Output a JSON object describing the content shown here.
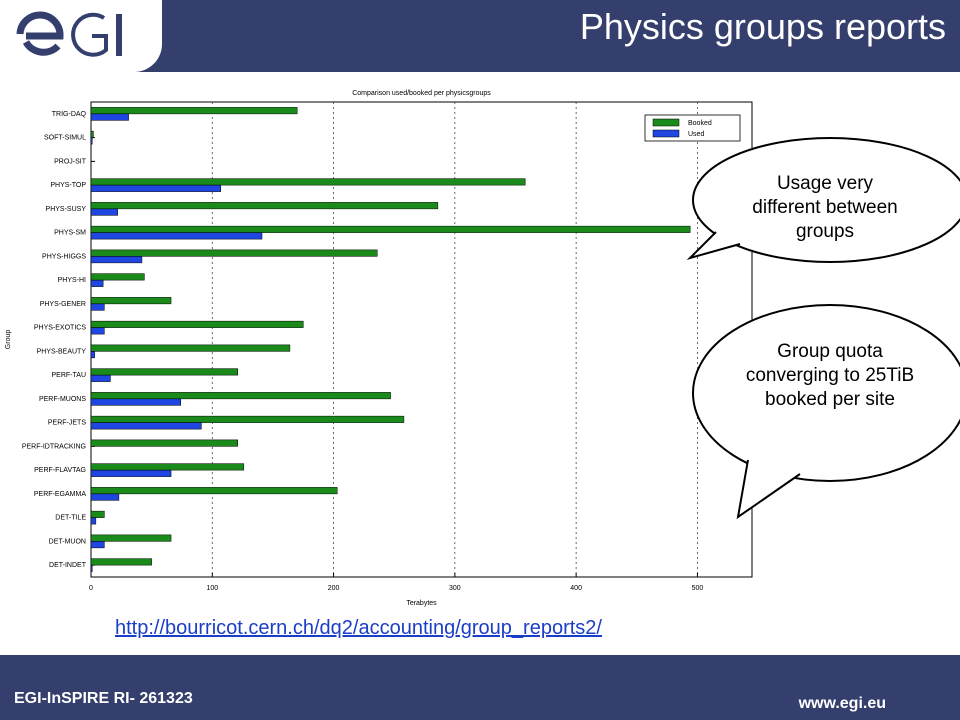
{
  "header": {
    "title": "Physics groups reports",
    "logo_text": "EGI"
  },
  "link": {
    "text": "http://bourricot.cern.ch/dq2/accounting/group_reports2/"
  },
  "footer": {
    "left": "EGI-InSPIRE RI- 261323",
    "right": "www.egi.eu"
  },
  "callouts": {
    "usage": "Usage very different between groups",
    "quota": "Group quota converging to 25TiB booked per site"
  },
  "colors": {
    "header": "#343f6e",
    "booked": "#1a8a1a",
    "used": "#1f46e0"
  },
  "chart_data": {
    "type": "bar",
    "orientation": "horizontal",
    "title": "Comparison used/booked per physicsgroups",
    "xlabel": "Terabytes",
    "ylabel": "Group",
    "xlim": [
      0,
      545
    ],
    "xticks": [
      0,
      100,
      200,
      300,
      400,
      500
    ],
    "grid": "vertical dashed",
    "legend_position": "top-right",
    "categories": [
      "TRIG-DAQ",
      "SOFT-SIMUL",
      "PROJ-SIT",
      "PHYS-TOP",
      "PHYS-SUSY",
      "PHYS-SM",
      "PHYS-HIGGS",
      "PHYS-HI",
      "PHYS-GENER",
      "PHYS-EXOTICS",
      "PHYS-BEAUTY",
      "PERF-TAU",
      "PERF-MUONS",
      "PERF-JETS",
      "PERF-IDTRACKING",
      "PERF-FLAVTAG",
      "PERF-EGAMMA",
      "DET-TILE",
      "DET-MUON",
      "DET-INDET"
    ],
    "series": [
      {
        "name": "Booked",
        "values": [
          170,
          2,
          0,
          358,
          286,
          494,
          236,
          44,
          66,
          175,
          164,
          121,
          247,
          258,
          121,
          126,
          203,
          11,
          66,
          50
        ]
      },
      {
        "name": "Used",
        "values": [
          31,
          1,
          0,
          107,
          22,
          141,
          42,
          10,
          11,
          11,
          3,
          16,
          74,
          91,
          0,
          66,
          23,
          4,
          11,
          1
        ]
      }
    ]
  }
}
